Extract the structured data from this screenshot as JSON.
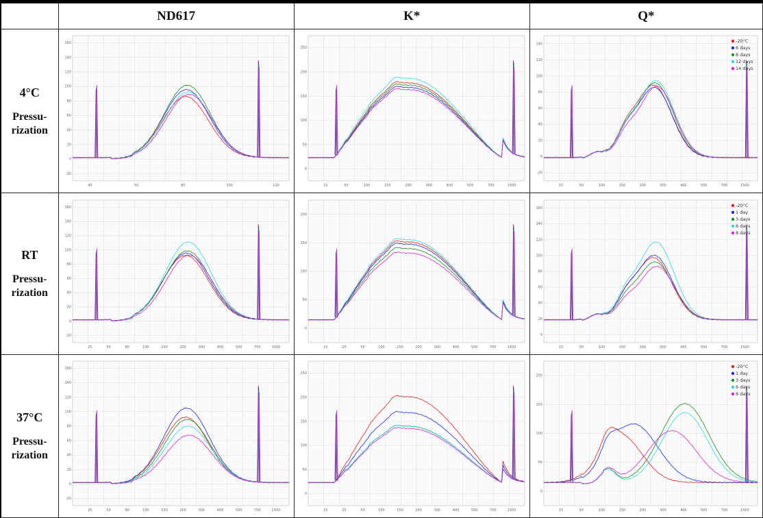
{
  "table": {
    "columns": [
      "ND617",
      "K*",
      "Q*"
    ],
    "rows": [
      {
        "temp": "4°C",
        "label_line1": "Pressu-",
        "label_line2": "rization"
      },
      {
        "temp": "RT",
        "label_line1": "Pressu-",
        "label_line2": "rization"
      },
      {
        "temp": "37°C",
        "label_line1": "Pressu-",
        "label_line2": "rization"
      }
    ]
  },
  "colors": {
    "series": [
      "#dd2222",
      "#1a2bd6",
      "#1e8a22",
      "#33d4e0",
      "#d622d6"
    ],
    "grid": "#dcdcdc",
    "plot_bg": "#fafafa"
  },
  "chart_data": [
    {
      "id": "nd617-4c",
      "type": "line",
      "shape": "nd",
      "bump": [
        0.54,
        0.6,
        0.64,
        0.58,
        0.56
      ],
      "y_ticks": [
        "160",
        "140",
        "120",
        "100",
        "80",
        "60",
        "40",
        "20",
        "0",
        "-20"
      ],
      "x_ticks": [
        "40",
        "50",
        "80",
        "100",
        "120"
      ],
      "legend": []
    },
    {
      "id": "k-4c",
      "type": "line",
      "shape": "k",
      "bump": [
        0.66,
        0.62,
        0.64,
        0.7,
        0.6
      ],
      "y_ticks": [
        "250",
        "200",
        "150",
        "100",
        "50",
        "0"
      ],
      "x_ticks": [
        "15",
        "50",
        "100",
        "150",
        "200",
        "300",
        "400",
        "500",
        "700",
        "1500"
      ],
      "legend": []
    },
    {
      "id": "q-4c",
      "type": "line",
      "shape": "q",
      "bump": [
        0.64,
        0.62,
        0.66,
        0.68,
        0.63
      ],
      "y_ticks": [
        "140",
        "120",
        "100",
        "80",
        "60",
        "40",
        "20",
        "0",
        "-20"
      ],
      "x_ticks": [
        "15",
        "50",
        "100",
        "150",
        "200",
        "300",
        "400",
        "500",
        "700",
        "1500"
      ],
      "legend": [
        "-20°C",
        "6 days",
        "8 days",
        "12 days",
        "14 days"
      ]
    },
    {
      "id": "nd617-rt",
      "type": "line",
      "shape": "nd",
      "bump": [
        0.58,
        0.6,
        0.62,
        0.7,
        0.58
      ],
      "y_ticks": [
        "160",
        "140",
        "120",
        "100",
        "80",
        "60",
        "40",
        "20",
        "0",
        "-20"
      ],
      "x_ticks": [
        "25",
        "50",
        "80",
        "100",
        "150",
        "200",
        "300",
        "400",
        "500",
        "700",
        "1500"
      ],
      "legend": []
    },
    {
      "id": "k-rt",
      "type": "line",
      "shape": "k",
      "bump": [
        0.7,
        0.68,
        0.64,
        0.72,
        0.6
      ],
      "y_ticks": [
        "200",
        "150",
        "100",
        "50",
        "0"
      ],
      "x_ticks": [
        "15",
        "25",
        "50",
        "100",
        "150",
        "200",
        "300",
        "400",
        "500",
        "700",
        "1500"
      ],
      "legend": []
    },
    {
      "id": "q-rt",
      "type": "line",
      "shape": "q",
      "bump": [
        0.56,
        0.58,
        0.52,
        0.7,
        0.48
      ],
      "y_ticks": [
        "160",
        "140",
        "120",
        "100",
        "80",
        "60",
        "40",
        "20",
        "0"
      ],
      "x_ticks": [
        "15",
        "50",
        "100",
        "150",
        "200",
        "300",
        "400",
        "500",
        "700",
        "1500"
      ],
      "legend": [
        "-20°C",
        "1 day",
        "3 days",
        "6 days",
        "8 days"
      ]
    },
    {
      "id": "nd617-37c",
      "type": "line",
      "shape": "nd",
      "bump": [
        0.58,
        0.66,
        0.56,
        0.5,
        0.42
      ],
      "y_ticks": [
        "160",
        "140",
        "120",
        "100",
        "80",
        "60",
        "40",
        "20",
        "0",
        "-20"
      ],
      "x_ticks": [
        "25",
        "50",
        "80",
        "100",
        "150",
        "200",
        "300",
        "400",
        "500",
        "700",
        "1500"
      ],
      "legend": []
    },
    {
      "id": "k-37c",
      "type": "line",
      "shape": "k",
      "bump": [
        0.76,
        0.62,
        0.5,
        0.5,
        0.48
      ],
      "y_ticks": [
        "250",
        "200",
        "150",
        "100",
        "50",
        "0"
      ],
      "x_ticks": [
        "15",
        "25",
        "50",
        "100",
        "150",
        "200",
        "300",
        "400",
        "500",
        "700",
        "1500"
      ],
      "legend": []
    },
    {
      "id": "q-37c",
      "type": "line",
      "shape": "q37",
      "bump": [
        0.42,
        0.52,
        0.7,
        0.62,
        0.46
      ],
      "y_ticks": [
        "200",
        "150",
        "100",
        "50",
        "0"
      ],
      "x_ticks": [
        "15",
        "50",
        "100",
        "150",
        "200",
        "300",
        "400",
        "500",
        "700",
        "1500"
      ],
      "legend": [
        "-20°C",
        "1 day",
        "3 days",
        "6 days",
        "8 days"
      ]
    }
  ]
}
